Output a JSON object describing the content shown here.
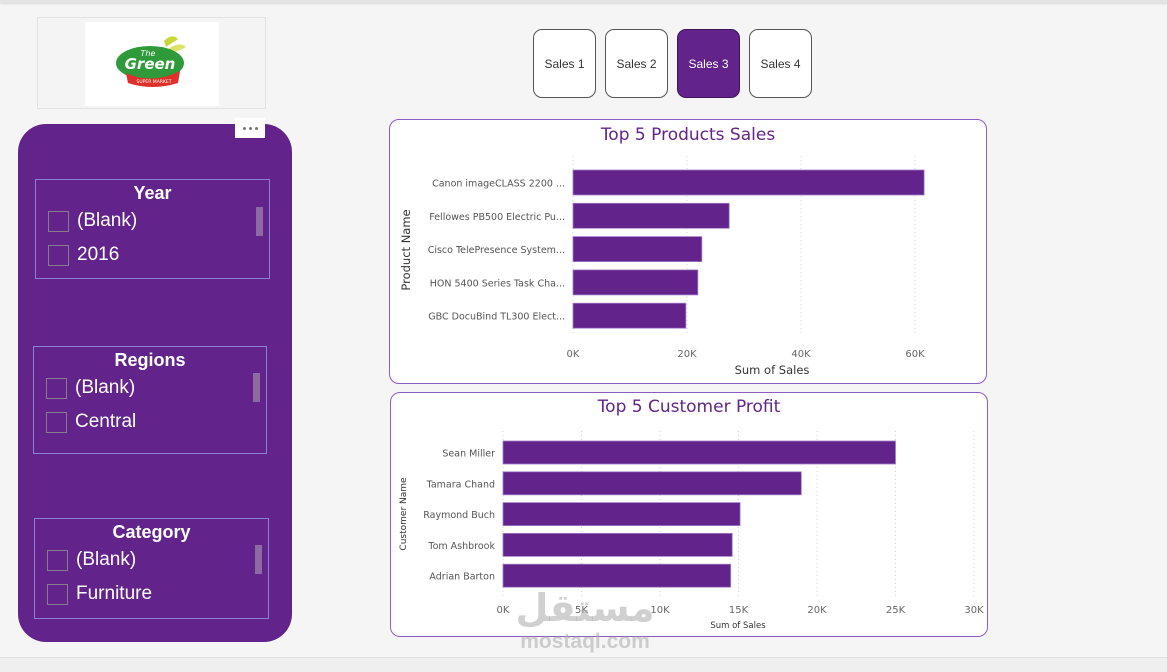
{
  "logo": {
    "line1": "The",
    "line2": "Green",
    "tagline": "SUPER MARKET",
    "colors": {
      "green": "#2e9a3a",
      "red": "#e0302a",
      "leaf": "#c9d63a"
    }
  },
  "nav": {
    "buttons": [
      {
        "label": "Sales 1",
        "active": false
      },
      {
        "label": "Sales 2",
        "active": false
      },
      {
        "label": "Sales 3",
        "active": true
      },
      {
        "label": "Sales 4",
        "active": false
      }
    ]
  },
  "filter_panel": {
    "more_options_icon": "ellipsis-icon",
    "slicers": [
      {
        "title": "Year",
        "items": [
          "(Blank)",
          "2016"
        ]
      },
      {
        "title": "Regions",
        "items": [
          "(Blank)",
          "Central"
        ]
      },
      {
        "title": "Category",
        "items": [
          "(Blank)",
          "Furniture"
        ]
      }
    ]
  },
  "theme": {
    "accent": "#62248b",
    "card_border": "#8a5cc4",
    "background": "#f5f5f5"
  },
  "chart_data": [
    {
      "type": "bar",
      "orientation": "horizontal",
      "title": "Top 5 Products Sales",
      "xlabel": "Sum of Sales",
      "ylabel": "Product Name",
      "categories": [
        "Canon imageCLASS 2200 ...",
        "Fellowes PB500 Electric Pu...",
        "Cisco TelePresence System...",
        "HON 5400 Series Task Cha...",
        "GBC DocuBind TL300 Elect..."
      ],
      "values": [
        61600,
        27400,
        22600,
        21900,
        19800
      ],
      "xlim": [
        0,
        70000
      ],
      "xticks": [
        0,
        20000,
        40000,
        60000
      ],
      "xtick_labels": [
        "0K",
        "20K",
        "40K",
        "60K"
      ],
      "grid": true,
      "color": "#62248b"
    },
    {
      "type": "bar",
      "orientation": "horizontal",
      "title": "Top 5 Customer Profit",
      "xlabel": "Sum of Sales",
      "ylabel": "Customer Name",
      "categories": [
        "Sean Miller",
        "Tamara Chand",
        "Raymond Buch",
        "Tom Ashbrook",
        "Adrian Barton"
      ],
      "values": [
        25000,
        19000,
        15100,
        14600,
        14500
      ],
      "xlim": [
        0,
        30000
      ],
      "xticks": [
        0,
        5000,
        10000,
        15000,
        20000,
        25000,
        30000
      ],
      "xtick_labels": [
        "0K",
        "5K",
        "10K",
        "15K",
        "20K",
        "25K",
        "30K"
      ],
      "grid": true,
      "color": "#62248b"
    }
  ],
  "watermark": {
    "arabic": "مستقل",
    "latin": "mostaql.com"
  }
}
